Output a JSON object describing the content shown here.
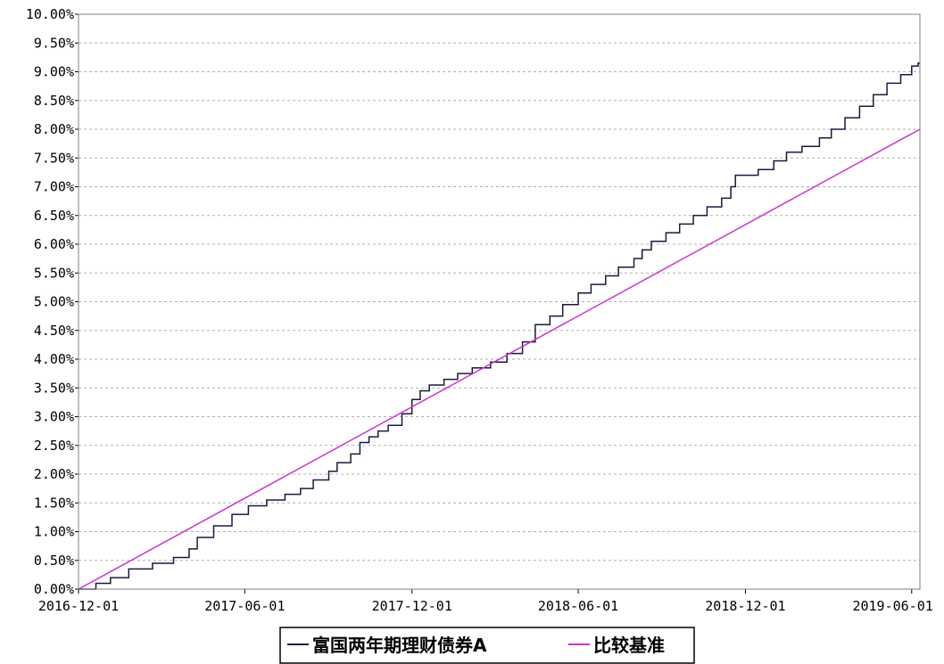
{
  "chart_data": {
    "type": "line",
    "ylim": [
      0,
      10
    ],
    "y_unit": "%",
    "y_ticks": [
      "0.00%",
      "0.50%",
      "1.00%",
      "1.50%",
      "2.00%",
      "2.50%",
      "3.00%",
      "3.50%",
      "4.00%",
      "4.50%",
      "5.00%",
      "5.50%",
      "6.00%",
      "6.50%",
      "7.00%",
      "7.50%",
      "8.00%",
      "8.50%",
      "9.00%",
      "9.50%",
      "10.00%"
    ],
    "x_ticks": [
      "2016-12-01",
      "2017-06-01",
      "2017-12-01",
      "2018-06-01",
      "2018-12-01",
      "2019-06-01"
    ],
    "xlim": [
      "2016-12-01",
      "2019-06-10"
    ],
    "grid": true,
    "legend_position": "bottom-center",
    "series": [
      {
        "name": "富国两年期理财债券A",
        "color": "#1a1a40",
        "step": true,
        "points": [
          [
            "2016-12-01",
            0.0
          ],
          [
            "2016-12-20",
            0.1
          ],
          [
            "2017-01-05",
            0.2
          ],
          [
            "2017-01-25",
            0.35
          ],
          [
            "2017-02-20",
            0.45
          ],
          [
            "2017-03-15",
            0.55
          ],
          [
            "2017-04-01",
            0.7
          ],
          [
            "2017-04-10",
            0.9
          ],
          [
            "2017-04-28",
            1.1
          ],
          [
            "2017-05-18",
            1.3
          ],
          [
            "2017-06-05",
            1.45
          ],
          [
            "2017-06-25",
            1.55
          ],
          [
            "2017-07-15",
            1.65
          ],
          [
            "2017-08-01",
            1.75
          ],
          [
            "2017-08-15",
            1.9
          ],
          [
            "2017-09-01",
            2.05
          ],
          [
            "2017-09-10",
            2.2
          ],
          [
            "2017-09-25",
            2.35
          ],
          [
            "2017-10-05",
            2.55
          ],
          [
            "2017-10-15",
            2.65
          ],
          [
            "2017-10-25",
            2.75
          ],
          [
            "2017-11-05",
            2.85
          ],
          [
            "2017-11-20",
            3.05
          ],
          [
            "2017-12-01",
            3.3
          ],
          [
            "2017-12-10",
            3.45
          ],
          [
            "2017-12-20",
            3.55
          ],
          [
            "2018-01-05",
            3.65
          ],
          [
            "2018-01-20",
            3.75
          ],
          [
            "2018-02-05",
            3.85
          ],
          [
            "2018-02-25",
            3.95
          ],
          [
            "2018-03-15",
            4.1
          ],
          [
            "2018-04-01",
            4.3
          ],
          [
            "2018-04-15",
            4.6
          ],
          [
            "2018-05-01",
            4.75
          ],
          [
            "2018-05-15",
            4.95
          ],
          [
            "2018-06-01",
            5.15
          ],
          [
            "2018-06-15",
            5.3
          ],
          [
            "2018-07-01",
            5.45
          ],
          [
            "2018-07-15",
            5.6
          ],
          [
            "2018-08-01",
            5.75
          ],
          [
            "2018-08-10",
            5.9
          ],
          [
            "2018-08-20",
            6.05
          ],
          [
            "2018-09-05",
            6.2
          ],
          [
            "2018-09-20",
            6.35
          ],
          [
            "2018-10-05",
            6.5
          ],
          [
            "2018-10-20",
            6.65
          ],
          [
            "2018-11-05",
            6.8
          ],
          [
            "2018-11-15",
            7.0
          ],
          [
            "2018-11-20",
            7.2
          ],
          [
            "2018-12-15",
            7.3
          ],
          [
            "2019-01-01",
            7.45
          ],
          [
            "2019-01-15",
            7.6
          ],
          [
            "2019-02-01",
            7.7
          ],
          [
            "2019-02-20",
            7.85
          ],
          [
            "2019-03-05",
            8.0
          ],
          [
            "2019-03-20",
            8.2
          ],
          [
            "2019-04-05",
            8.4
          ],
          [
            "2019-04-20",
            8.6
          ],
          [
            "2019-05-05",
            8.8
          ],
          [
            "2019-05-20",
            8.95
          ],
          [
            "2019-06-01",
            9.1
          ],
          [
            "2019-06-08",
            9.15
          ]
        ]
      },
      {
        "name": "比较基准",
        "color": "#cc33cc",
        "step": false,
        "points": [
          [
            "2016-12-01",
            0.0
          ],
          [
            "2019-06-10",
            8.0
          ]
        ]
      }
    ]
  }
}
